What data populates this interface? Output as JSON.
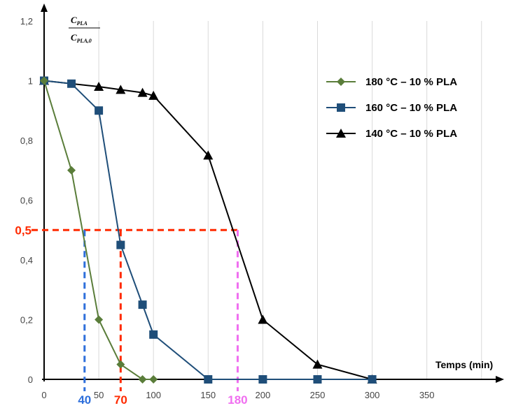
{
  "chart_data": {
    "type": "line",
    "y_label": {
      "numerator": "C",
      "numerator_sub": "PLA",
      "denominator": "C",
      "denominator_sub": "PLA,0"
    },
    "x_label": "Temps (min)",
    "xlim": [
      0,
      420
    ],
    "ylim": [
      0,
      1.2
    ],
    "x_ticks": [
      {
        "value": 0,
        "label": "0"
      },
      {
        "value": 50,
        "label": "50"
      },
      {
        "value": 100,
        "label": "100"
      },
      {
        "value": 150,
        "label": "150"
      },
      {
        "value": 200,
        "label": "200"
      },
      {
        "value": 250,
        "label": "250"
      },
      {
        "value": 300,
        "label": "300"
      },
      {
        "value": 350,
        "label": "350"
      }
    ],
    "y_ticks": [
      {
        "value": 0,
        "label": "0"
      },
      {
        "value": 0.2,
        "label": "0,2"
      },
      {
        "value": 0.4,
        "label": "0,4"
      },
      {
        "value": 0.6,
        "label": "0,6"
      },
      {
        "value": 0.8,
        "label": "0,8"
      },
      {
        "value": 1.0,
        "label": "1"
      },
      {
        "value": 1.2,
        "label": "1,2"
      }
    ],
    "grid": "vertical",
    "legend_position": "top-right",
    "series": [
      {
        "name": "180 °C – 10 % PLA",
        "color": "#5a7d3a",
        "marker": "diamond",
        "x": [
          0,
          25,
          50,
          70,
          90,
          100
        ],
        "y": [
          1,
          0.7,
          0.2,
          0.05,
          0,
          0
        ]
      },
      {
        "name": "160 °C – 10 % PLA",
        "color": "#1f4e79",
        "marker": "square",
        "x": [
          0,
          25,
          50,
          70,
          90,
          100,
          150,
          200,
          250,
          300
        ],
        "y": [
          1,
          0.99,
          0.9,
          0.45,
          0.25,
          0.15,
          0,
          0,
          0,
          0
        ]
      },
      {
        "name": "140 °C – 10 % PLA",
        "color": "#000000",
        "marker": "triangle",
        "x": [
          0,
          50,
          70,
          90,
          100,
          150,
          200,
          250,
          300
        ],
        "y": [
          1,
          0.98,
          0.97,
          0.96,
          0.95,
          0.75,
          0.2,
          0.05,
          0
        ]
      }
    ],
    "annotations": {
      "y_level": {
        "value": 0.5,
        "label": "0,5",
        "color": "#ff2a00"
      },
      "x_markers": [
        {
          "x": 37,
          "label": "40",
          "color": "#2e6fdb"
        },
        {
          "x": 70,
          "label": "70",
          "color": "#ff2a00"
        },
        {
          "x": 177,
          "label": "180",
          "color": "#f06ef0"
        }
      ]
    }
  }
}
